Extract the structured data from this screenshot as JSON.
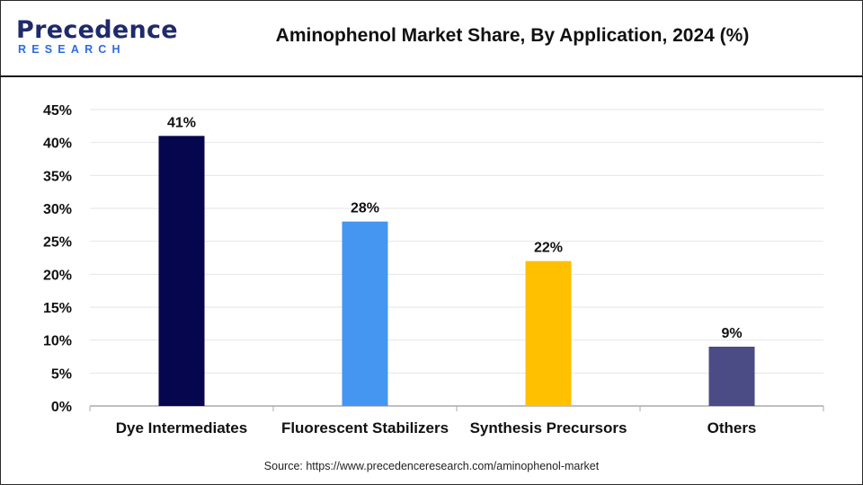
{
  "header": {
    "logo_main": "Precedence",
    "logo_sub": "RESEARCH",
    "title": "Aminophenol Market Share, By Application, 2024 (%)"
  },
  "source": "Source: https://www.precedenceresearch.com/aminophenol-market",
  "colors": {
    "bar_dye": "#06064e",
    "bar_fluorescent": "#4496f0",
    "bar_synthesis": "#ffc000",
    "bar_others": "#4b4b85",
    "grid": "#e6e6e6",
    "axis": "#aaaaaa"
  },
  "chart_data": {
    "type": "bar",
    "title": "Aminophenol Market Share, By Application, 2024 (%)",
    "categories": [
      "Dye Intermediates",
      "Fluorescent Stabilizers",
      "Synthesis Precursors",
      "Others"
    ],
    "values": [
      41,
      28,
      22,
      9
    ],
    "value_labels": [
      "41%",
      "28%",
      "22%",
      "9%"
    ],
    "ylim": [
      0,
      45
    ],
    "yticks": [
      0,
      5,
      10,
      15,
      20,
      25,
      30,
      35,
      40,
      45
    ],
    "ytick_labels": [
      "0%",
      "5%",
      "10%",
      "15%",
      "20%",
      "25%",
      "30%",
      "35%",
      "40%",
      "45%"
    ],
    "xlabel": "",
    "ylabel": "",
    "grid": true,
    "legend": "none"
  }
}
